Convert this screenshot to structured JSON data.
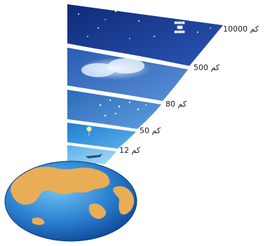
{
  "figure": {
    "layers": [
      {
        "label": "10000 كم",
        "color": "#1a3f97"
      },
      {
        "label": "500 كم",
        "color": "#3f72c2"
      },
      {
        "label": "80 كم",
        "color": "#3e80cc"
      },
      {
        "label": "50 كم",
        "color": "#2f8fd6"
      },
      {
        "label": "12 كم",
        "color": "#69b8e8"
      }
    ],
    "colors": {
      "ocean": "#1f6fc4",
      "land": "#e9ad55",
      "band_outline": "#ffffff"
    },
    "icons": [
      "satellite-icon",
      "cloud-icon",
      "meteor-icon",
      "balloon-icon",
      "airplane-icon",
      "earth-globe-icon"
    ]
  }
}
